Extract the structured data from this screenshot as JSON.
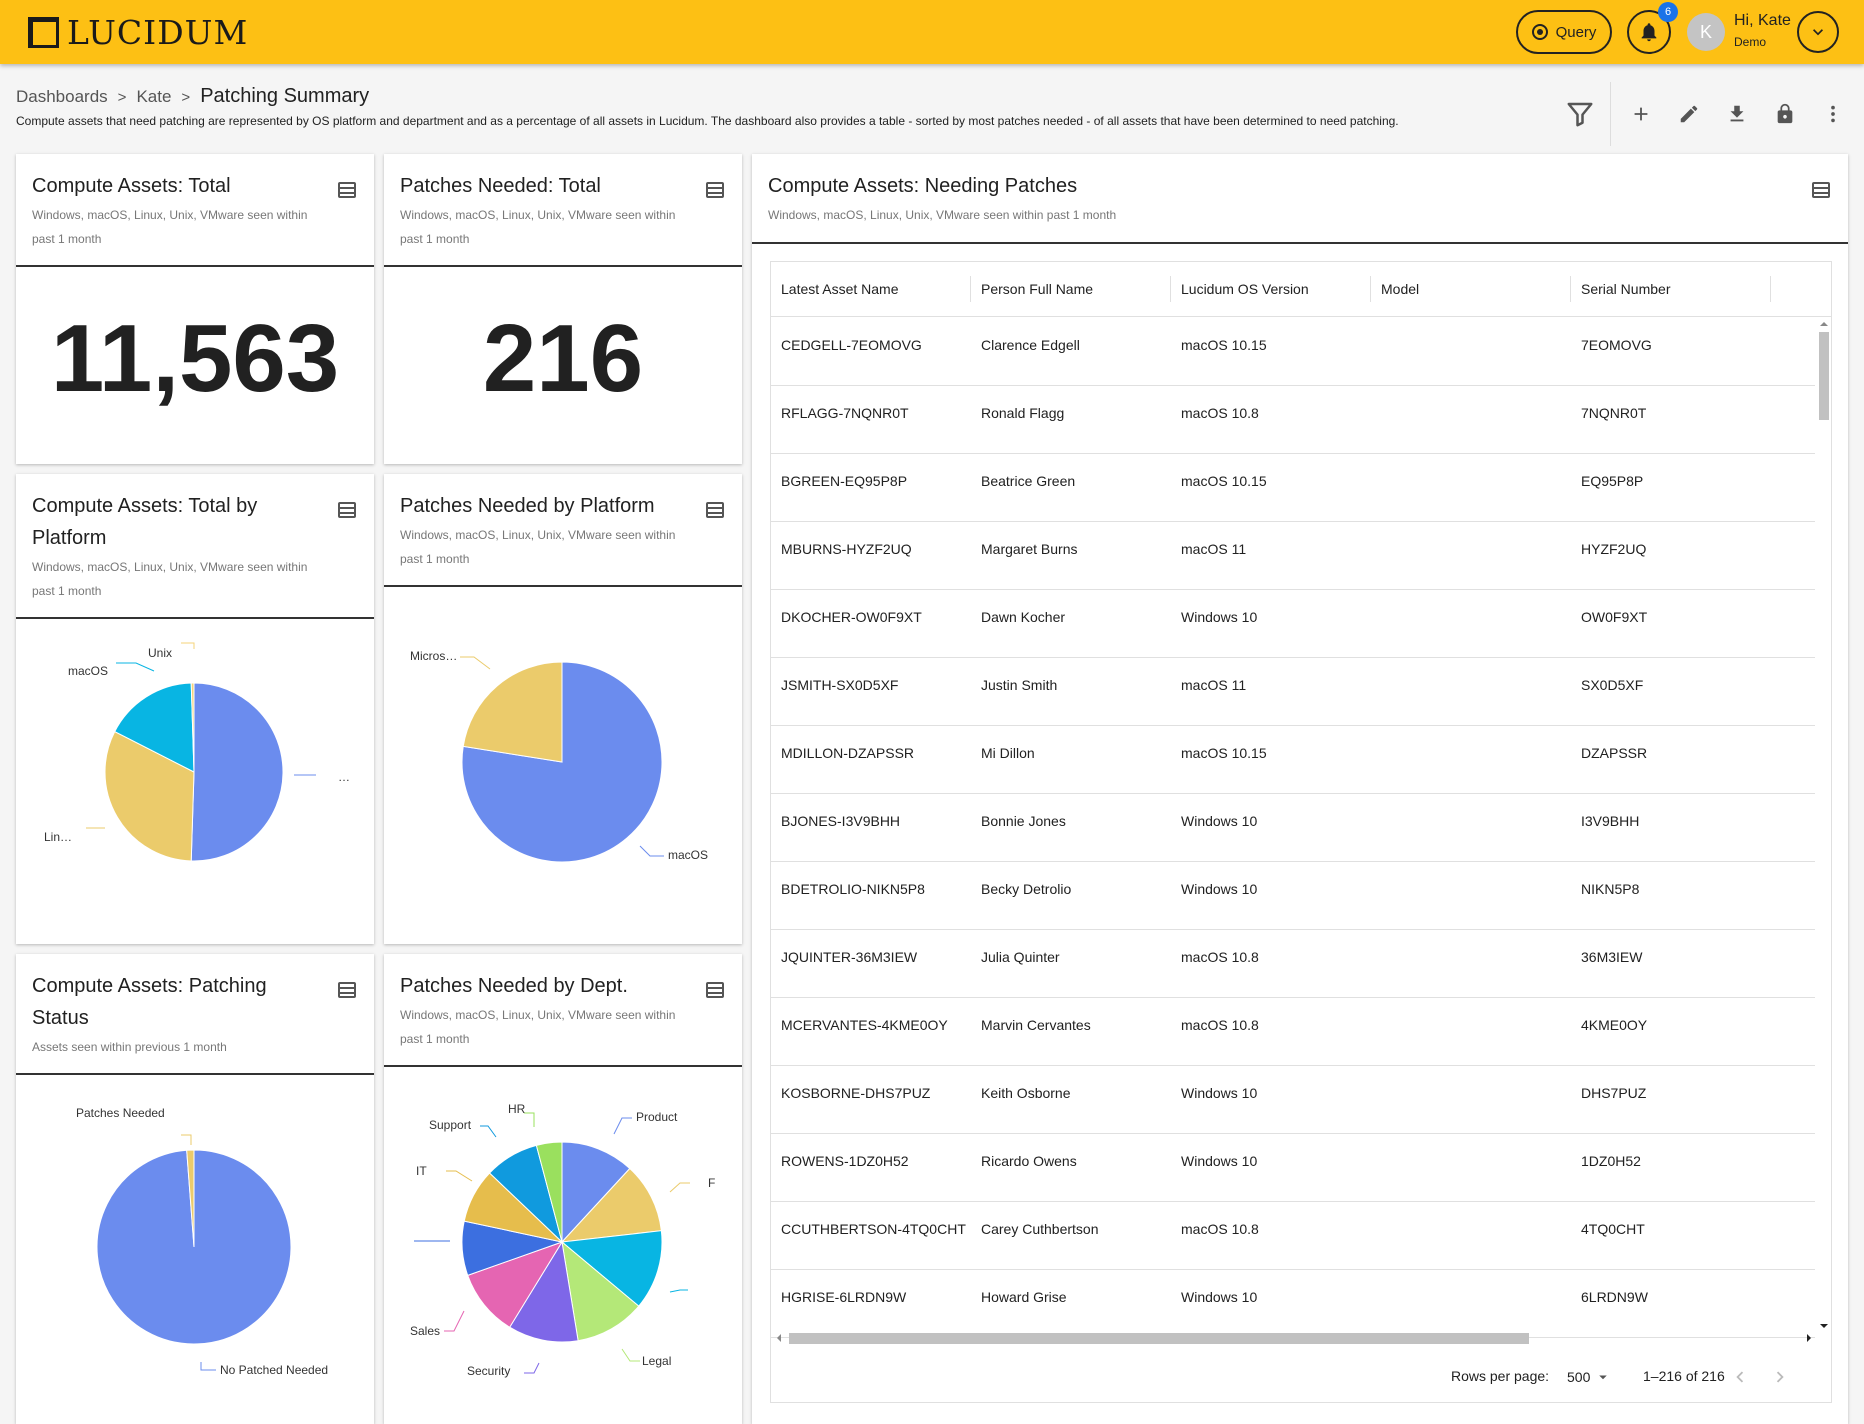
{
  "app": {
    "logo_text": "LUCIDUM"
  },
  "topbar": {
    "query_label": "Query",
    "notification_count": "6",
    "avatar_initial": "K",
    "user_greeting": "Hi, Kate",
    "user_role": "Demo"
  },
  "breadcrumb": {
    "items": [
      "Dashboards",
      "Kate"
    ],
    "separator": ">",
    "current": "Patching Summary"
  },
  "page_description": "Compute assets that need patching are represented by OS platform and department and as a percentage of all assets in Lucidum. The dashboard also provides a table - sorted by most patches needed - of all assets that have been determined to need patching.",
  "toolbar": {
    "icons": [
      "filter-icon",
      "add-icon",
      "edit-icon",
      "download-icon",
      "lock-icon",
      "more-vert-icon"
    ]
  },
  "cards": {
    "total": {
      "title": "Compute Assets: Total",
      "subtitle_1": "Windows, macOS, Linux, Unix, VMware seen within",
      "subtitle_2": "past 1 month",
      "value": "11,563"
    },
    "patches_total": {
      "title": "Patches Needed: Total",
      "subtitle_1": "Windows, macOS, Linux, Unix, VMware seen within",
      "subtitle_2": "past 1 month",
      "value": "216"
    },
    "by_platform": {
      "title_1": "Compute Assets: Total by",
      "title_2": "Platform",
      "subtitle_1": "Windows, macOS, Linux, Unix, VMware seen within",
      "subtitle_2": "past 1 month"
    },
    "patches_platform": {
      "title": "Patches Needed by Platform",
      "subtitle_1": "Windows, macOS, Linux, Unix, VMware seen within",
      "subtitle_2": "past 1 month"
    },
    "patching_status": {
      "title_1": "Compute Assets: Patching",
      "title_2": "Status",
      "subtitle": "Assets seen within previous 1 month"
    },
    "patches_dept": {
      "title": "Patches Needed by Dept.",
      "subtitle_1": "Windows, macOS, Linux, Unix, VMware seen within",
      "subtitle_2": "past 1 month"
    },
    "needing": {
      "title": "Compute Assets: Needing Patches",
      "subtitle": "Windows, macOS, Linux, Unix, VMware seen within past 1 month"
    }
  },
  "chart_data": [
    {
      "type": "pie",
      "id": "total-by-platform",
      "labels": [
        "…",
        "Lin…",
        "macOS",
        "Unix"
      ],
      "values": [
        50.5,
        32.0,
        17.0,
        0.5
      ],
      "colors": [
        "#6b8cee",
        "#ebcb6b",
        "#08b5e3",
        "#f4d37a"
      ]
    },
    {
      "type": "pie",
      "id": "patches-by-platform",
      "labels": [
        "macOS",
        "Micros…"
      ],
      "values": [
        77.5,
        22.5
      ],
      "colors": [
        "#6b8cee",
        "#ebcb6b"
      ]
    },
    {
      "type": "pie",
      "id": "patching-status",
      "labels": [
        "No Patched Needed",
        "Patches Needed"
      ],
      "values": [
        98.8,
        1.2
      ],
      "colors": [
        "#6b8cee",
        "#ebcb6b"
      ]
    },
    {
      "type": "pie",
      "id": "patches-by-dept",
      "labels": [
        "Product",
        "F",
        "",
        "Legal",
        "Security",
        "Sales",
        "",
        "IT",
        "Support",
        "HR"
      ],
      "values": [
        11.5,
        11.0,
        12.5,
        11.0,
        11.0,
        10.5,
        8.5,
        8.5,
        8.5,
        4.0
      ],
      "colors": [
        "#6b8cee",
        "#ebcb6b",
        "#08b5e3",
        "#b4e878",
        "#7e67e8",
        "#e565b2",
        "#3c6fe0",
        "#e6bd4c",
        "#109ade",
        "#9ae05e"
      ]
    }
  ],
  "table": {
    "columns": [
      "Latest Asset Name",
      "Person Full Name",
      "Lucidum OS Version",
      "Model",
      "Serial Number"
    ],
    "rows": [
      [
        "CEDGELL-7EOMOVG",
        "Clarence Edgell",
        "macOS 10.15",
        "",
        "7EOMOVG"
      ],
      [
        "RFLAGG-7NQNR0T",
        "Ronald Flagg",
        "macOS 10.8",
        "",
        "7NQNR0T"
      ],
      [
        "BGREEN-EQ95P8P",
        "Beatrice Green",
        "macOS 10.15",
        "",
        "EQ95P8P"
      ],
      [
        "MBURNS-HYZF2UQ",
        "Margaret Burns",
        "macOS 11",
        "",
        "HYZF2UQ"
      ],
      [
        "DKOCHER-OW0F9XT",
        "Dawn Kocher",
        "Windows 10",
        "",
        "OW0F9XT"
      ],
      [
        "JSMITH-SX0D5XF",
        "Justin Smith",
        "macOS 11",
        "",
        "SX0D5XF"
      ],
      [
        "MDILLON-DZAPSSR",
        "Mi Dillon",
        "macOS 10.15",
        "",
        "DZAPSSR"
      ],
      [
        "BJONES-I3V9BHH",
        "Bonnie Jones",
        "Windows 10",
        "",
        "I3V9BHH"
      ],
      [
        "BDETROLIO-NIKN5P8",
        "Becky Detrolio",
        "Windows 10",
        "",
        "NIKN5P8"
      ],
      [
        "JQUINTER-36M3IEW",
        "Julia Quinter",
        "macOS 10.8",
        "",
        "36M3IEW"
      ],
      [
        "MCERVANTES-4KME0OY",
        "Marvin Cervantes",
        "macOS 10.8",
        "",
        "4KME0OY"
      ],
      [
        "KOSBORNE-DHS7PUZ",
        "Keith Osborne",
        "Windows 10",
        "",
        "DHS7PUZ"
      ],
      [
        "ROWENS-1DZ0H52",
        "Ricardo Owens",
        "Windows 10",
        "",
        "1DZ0H52"
      ],
      [
        "CCUTHBERTSON-4TQ0CHT",
        "Carey Cuthbertson",
        "macOS 10.8",
        "",
        "4TQ0CHT"
      ],
      [
        "HGRISE-6LRDN9W",
        "Howard Grise",
        "Windows 10",
        "",
        "6LRDN9W"
      ]
    ],
    "rows_per_page_label": "Rows per page:",
    "rows_per_page_value": "500",
    "range_text": "1–216 of 216"
  }
}
